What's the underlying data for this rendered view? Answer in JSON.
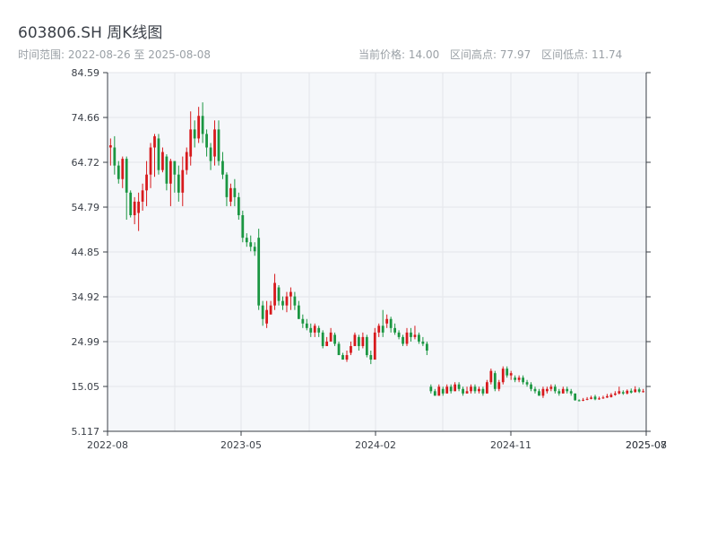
{
  "header": {
    "title": "603806.SH 周K线图",
    "range_label": "时间范围: 2022-08-26 至 2025-08-08",
    "current_price_label": "当前价格: 14.00",
    "high_label": "区间高点: 77.97",
    "low_label": "区间低点: 11.74"
  },
  "colors": {
    "up": "#d7191c",
    "down": "#1a9641",
    "plot_bg": "#f5f7fa",
    "grid": "#e3e6ea",
    "axis": "#3a3f47"
  },
  "chart_data": {
    "type": "candlestick",
    "title": "603806.SH 周K线图",
    "ylim": [
      5.117,
      84.59
    ],
    "y_ticks": [
      "84.59",
      "74.66",
      "64.72",
      "54.79",
      "44.85",
      "34.92",
      "24.99",
      "15.05",
      "5.117"
    ],
    "x_ticks": [
      "2022-08",
      "2023-05",
      "2024-02",
      "2024-11",
      "2025-07",
      "2025-08"
    ],
    "current_price": 14.0,
    "period_high": 77.97,
    "period_low": 11.74,
    "candles": [
      [
        68,
        68.5,
        70,
        64
      ],
      [
        68,
        64,
        70.5,
        62
      ],
      [
        64,
        61,
        65,
        60
      ],
      [
        61,
        65.5,
        66,
        59
      ],
      [
        65.5,
        58,
        66,
        52
      ],
      [
        58,
        53,
        58.5,
        52.5
      ],
      [
        53,
        56,
        57,
        51
      ],
      [
        53.5,
        56,
        58,
        49.5
      ],
      [
        56,
        58.5,
        60,
        54
      ],
      [
        58.5,
        62,
        65,
        55
      ],
      [
        62,
        68,
        69,
        59
      ],
      [
        68,
        70.5,
        71,
        61.5
      ],
      [
        70,
        63,
        71,
        62
      ],
      [
        63,
        67,
        68,
        62.5
      ],
      [
        66,
        60,
        66.5,
        58.5
      ],
      [
        60,
        65,
        65.5,
        55
      ],
      [
        65,
        62,
        63,
        58
      ],
      [
        62,
        58,
        64,
        56
      ],
      [
        58,
        63,
        66,
        55
      ],
      [
        63,
        67,
        68,
        62
      ],
      [
        66,
        72,
        76,
        64
      ],
      [
        72,
        70,
        74,
        68
      ],
      [
        70,
        75,
        77,
        69
      ],
      [
        75,
        71,
        78,
        69
      ],
      [
        71,
        68,
        72,
        66
      ],
      [
        68,
        65,
        69,
        63
      ],
      [
        66,
        72,
        74,
        64
      ],
      [
        72,
        65,
        74,
        64
      ],
      [
        65,
        62,
        67,
        61
      ],
      [
        62,
        57,
        62.5,
        55
      ],
      [
        56,
        59,
        60,
        55
      ],
      [
        59,
        57,
        61,
        55
      ],
      [
        57,
        53,
        58,
        52
      ],
      [
        53,
        48,
        54,
        47
      ],
      [
        48,
        47,
        49,
        46
      ],
      [
        47,
        46,
        48.5,
        45
      ],
      [
        46,
        45,
        47,
        44
      ],
      [
        48,
        33,
        50,
        32
      ],
      [
        33,
        30,
        34,
        28.5
      ],
      [
        29,
        32,
        34,
        28
      ],
      [
        31,
        33,
        34,
        31
      ],
      [
        33,
        38,
        40,
        32
      ],
      [
        37,
        34,
        37.5,
        33
      ],
      [
        34,
        33,
        35,
        32
      ],
      [
        33,
        35,
        36,
        31.5
      ],
      [
        35,
        36,
        37,
        32
      ],
      [
        35,
        33,
        36,
        32
      ],
      [
        33,
        30,
        34,
        30
      ],
      [
        30,
        29,
        31,
        28
      ],
      [
        29,
        28,
        30,
        27.5
      ],
      [
        28,
        27,
        29,
        26
      ],
      [
        27,
        28.5,
        29,
        26
      ],
      [
        28,
        27,
        28.5,
        26
      ],
      [
        27,
        24,
        27.5,
        23.5
      ],
      [
        24,
        25,
        26,
        24
      ],
      [
        25,
        27,
        28,
        25
      ],
      [
        26.5,
        24.5,
        27,
        24
      ],
      [
        24.5,
        22,
        25,
        22
      ],
      [
        22,
        21,
        22.5,
        21
      ],
      [
        21,
        22,
        23,
        20.5
      ],
      [
        22.5,
        24,
        25,
        22
      ],
      [
        24,
        26.5,
        27,
        24
      ],
      [
        26,
        24,
        26.5,
        23
      ],
      [
        24,
        26,
        27,
        23.5
      ],
      [
        26,
        22,
        26.5,
        21.5
      ],
      [
        22,
        21,
        23,
        20
      ],
      [
        21,
        27,
        28,
        24
      ],
      [
        27,
        28.5,
        29,
        26
      ],
      [
        28.5,
        27,
        32,
        26
      ],
      [
        29,
        30,
        31,
        28
      ],
      [
        30,
        28,
        30.5,
        27
      ],
      [
        28,
        27,
        29,
        26.5
      ],
      [
        27,
        26,
        27.5,
        25.5
      ],
      [
        26,
        24.5,
        26.5,
        24
      ],
      [
        24.5,
        27,
        28,
        24
      ],
      [
        27,
        26,
        28,
        25
      ],
      [
        26,
        26.5,
        28.5,
        25.5
      ],
      [
        26.5,
        25,
        27,
        24.5
      ],
      [
        25,
        24.5,
        26,
        24
      ],
      [
        24.5,
        23,
        25,
        22
      ],
      [
        15,
        14,
        15.5,
        13.5
      ],
      [
        14,
        13,
        14.5,
        13
      ],
      [
        13,
        15,
        15.5,
        13
      ],
      [
        14.5,
        13.5,
        15,
        13
      ],
      [
        13.5,
        15,
        15.5,
        13.5
      ],
      [
        15,
        14,
        15.5,
        13.5
      ],
      [
        14,
        15.5,
        16,
        14
      ],
      [
        15.5,
        14.5,
        16,
        14
      ],
      [
        14.5,
        13.5,
        15,
        13
      ],
      [
        13.5,
        14,
        15,
        13.5
      ],
      [
        14,
        15,
        15.5,
        13.5
      ],
      [
        15,
        14,
        15.5,
        13.5
      ],
      [
        14,
        14.5,
        15,
        13.5
      ],
      [
        14.5,
        13.5,
        15,
        13
      ],
      [
        13.5,
        16,
        16.5,
        13.5
      ],
      [
        16,
        18.5,
        19,
        15.5
      ],
      [
        18,
        14.5,
        18.5,
        14
      ],
      [
        14.5,
        16,
        16.5,
        14
      ],
      [
        16,
        19,
        19.5,
        15.5
      ],
      [
        19,
        17.5,
        19.5,
        17
      ],
      [
        17.5,
        18,
        18.5,
        16.5
      ],
      [
        17,
        16.5,
        17.5,
        16
      ],
      [
        16.5,
        17,
        17.5,
        16
      ],
      [
        17,
        16,
        17.5,
        15.5
      ],
      [
        16,
        15.5,
        16.5,
        15
      ],
      [
        15.5,
        14.5,
        16,
        14
      ],
      [
        14.5,
        14,
        15,
        13.5
      ],
      [
        14,
        13,
        14.5,
        13
      ],
      [
        13,
        14.5,
        15,
        12.5
      ],
      [
        14,
        14.5,
        15,
        13.5
      ],
      [
        14.5,
        15,
        15.5,
        14
      ],
      [
        15,
        14,
        15.5,
        13.5
      ],
      [
        14,
        13.5,
        14.5,
        13
      ],
      [
        13.5,
        14.5,
        15,
        13.5
      ],
      [
        14.5,
        14,
        15,
        13.5
      ],
      [
        14,
        13.5,
        14.5,
        13
      ],
      [
        13.5,
        12,
        13.5,
        11.9
      ],
      [
        12,
        11.8,
        12.2,
        11.74
      ],
      [
        12,
        12.1,
        12.5,
        11.8
      ],
      [
        12.1,
        12.3,
        12.7,
        12
      ],
      [
        12.3,
        12.6,
        13,
        12.2
      ],
      [
        12.8,
        12.2,
        13.2,
        12
      ],
      [
        12.2,
        12.4,
        12.8,
        12.1
      ],
      [
        12.4,
        12.6,
        13,
        12.3
      ],
      [
        12.6,
        12.9,
        13.4,
        12.5
      ],
      [
        12.7,
        13.2,
        13.6,
        12.6
      ],
      [
        13.2,
        13.5,
        14,
        13
      ],
      [
        13.5,
        14,
        15,
        13.3
      ],
      [
        13.8,
        13.5,
        14.2,
        13.2
      ],
      [
        13.5,
        14.1,
        14.4,
        13.3
      ],
      [
        14.1,
        13.7,
        14.6,
        13.5
      ],
      [
        13.8,
        14.4,
        15.1,
        13.7
      ],
      [
        14.4,
        13.9,
        14.8,
        13.6
      ],
      [
        13.9,
        14,
        14.5,
        13.7
      ]
    ]
  }
}
